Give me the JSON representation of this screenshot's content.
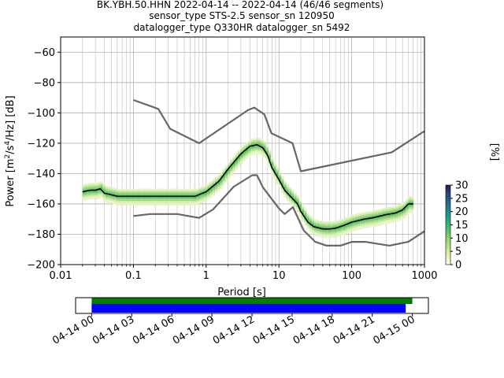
{
  "title": {
    "line1": "BK.YBH.50.HHN   2022-04-14 -- 2022-04-14  (46/46 segments)",
    "line2": "sensor_type STS-2.5 sensor_sn 120950",
    "line3": "datalogger_type Q330HR datalogger_sn 5492"
  },
  "colorbar": {
    "label": "[%]",
    "ticks": [
      "0",
      "5",
      "10",
      "15",
      "20",
      "25",
      "30"
    ],
    "min": 0,
    "max": 30
  },
  "timeline": {
    "ticks": [
      "04-14 00",
      "04-14 03",
      "04-14 06",
      "04-14 09",
      "04-14 12",
      "04-14 15",
      "04-14 18",
      "04-14 21",
      "04-15 00"
    ],
    "green_color": "#008000",
    "blue_color": "#0000ff"
  },
  "colors": {
    "noise_model": "#666666",
    "mean_curve": "#000000",
    "grid": "#b0b0b0"
  },
  "chart_data": [
    {
      "type": "heatmap",
      "xlabel": "Period [s]",
      "ylabel": "Power [m²/s⁴/Hz] [dB]",
      "xscale": "log",
      "xlim": [
        0.01,
        1000
      ],
      "ylim": [
        -200,
        -50
      ],
      "x_tick_labels": [
        "0.01",
        "0.1",
        "1",
        "10",
        "100",
        "1000"
      ],
      "x_tick_values": [
        0.01,
        0.1,
        1,
        10,
        100,
        1000
      ],
      "y_tick_labels": [
        "−200",
        "−180",
        "−160",
        "−140",
        "−120",
        "−100",
        "−80",
        "−60"
      ],
      "y_tick_values": [
        -200,
        -180,
        -160,
        -140,
        -120,
        -100,
        -80,
        -60
      ],
      "grid": true,
      "series": [
        {
          "role": "noise-model-high",
          "x": [
            0.1,
            0.22,
            0.32,
            0.8,
            3.8,
            4.6,
            6.3,
            7.9,
            15.4,
            20,
            354.8,
            1000
          ],
          "y": [
            -91.5,
            -97.4,
            -110.5,
            -120,
            -98,
            -96.5,
            -101,
            -113.5,
            -120,
            -138.5,
            -126,
            -112
          ]
        },
        {
          "role": "noise-model-low",
          "x": [
            0.1,
            0.17,
            0.4,
            0.8,
            1.24,
            2.4,
            4.3,
            5,
            6,
            10,
            12,
            15.6,
            21.9,
            31.6,
            45,
            70,
            101,
            154,
            328,
            600,
            1000
          ],
          "y": [
            -168,
            -166.7,
            -166.7,
            -169.2,
            -163.7,
            -148.6,
            -141.1,
            -141.1,
            -149,
            -163,
            -166.7,
            -162.1,
            -177.5,
            -185,
            -187.5,
            -187.5,
            -185,
            -185,
            -187.5,
            -185,
            -178
          ]
        },
        {
          "role": "mean",
          "x": [
            0.02,
            0.025,
            0.03,
            0.035,
            0.04,
            0.05,
            0.06,
            0.08,
            0.1,
            0.15,
            0.2,
            0.3,
            0.5,
            0.7,
            1,
            1.5,
            2,
            3,
            4,
            5,
            6,
            7,
            8,
            10,
            12,
            15,
            18,
            20,
            25,
            30,
            40,
            50,
            60,
            80,
            100,
            150,
            200,
            300,
            400,
            500,
            600,
            700
          ],
          "y": [
            -152,
            -151,
            -151,
            -150,
            -153,
            -154,
            -155,
            -155,
            -155,
            -155,
            -155,
            -155,
            -155,
            -155,
            -152,
            -145,
            -137,
            -127,
            -122,
            -121,
            -123,
            -128,
            -136,
            -144,
            -151,
            -156,
            -160,
            -165,
            -172,
            -175,
            -176.5,
            -176.5,
            -176,
            -174,
            -172,
            -170,
            -169,
            -167,
            -166,
            -164,
            -160,
            -160
          ]
        }
      ]
    },
    {
      "type": "bar",
      "orientation": "horizontal",
      "x_tick_labels": [
        "04-14 00",
        "04-14 03",
        "04-14 06",
        "04-14 09",
        "04-14 12",
        "04-14 15",
        "04-14 18",
        "04-14 21",
        "04-15 00"
      ],
      "xlim_hours": [
        -1.2,
        25.2
      ],
      "bars": [
        {
          "color": "green",
          "start_hour": 0,
          "end_hour": 24.0
        },
        {
          "color": "blue",
          "start_hour": 0,
          "end_hour": 23.5
        }
      ]
    }
  ]
}
